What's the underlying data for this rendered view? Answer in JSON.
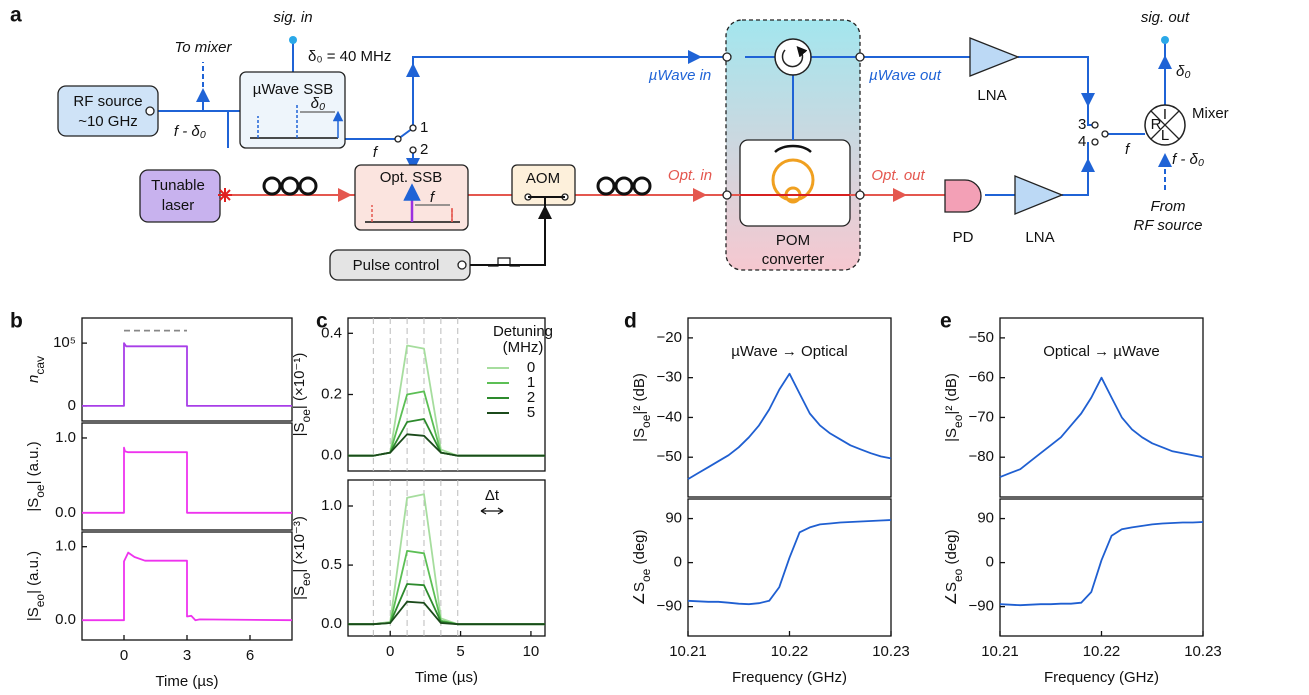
{
  "diagram": {
    "label": "a",
    "sig_in": "sig. in",
    "to_mixer": "To mixer",
    "delta_set": "δ₀ = 40 MHz",
    "rf_source_1": "RF source",
    "rf_source_2": "~10 GHz",
    "f_minus_d0_left": "f - δ₀",
    "uwave_ssb": "µWave SSB",
    "d0_ssb": "δ₀",
    "f_ssb": "f",
    "switch_1": "1",
    "switch_2": "2",
    "uwave_in": "µWave in",
    "uwave_out": "µWave out",
    "lna_top": "LNA",
    "sig_out": "sig. out",
    "d0_out": "δ₀",
    "switch_3": "3",
    "switch_4": "4",
    "f_mixer": "f",
    "mixer_r": "R",
    "mixer_i": "I",
    "mixer_l": "L",
    "mixer": "Mixer",
    "f_minus_d0_right": "f - δ₀",
    "from_1": "From",
    "from_2": "RF source",
    "laser_1": "Tunable",
    "laser_2": "laser",
    "opt_ssb": "Opt. SSB",
    "f_opt": "f",
    "aom": "AOM",
    "opt_in": "Opt. in",
    "opt_out": "Opt. out",
    "pom_1": "POM",
    "pom_2": "converter",
    "pd": "PD",
    "lna_bottom": "LNA",
    "pulse_control": "Pulse control"
  },
  "chart_data": [
    {
      "type": "line",
      "panel_label": "b",
      "xlim": [
        -2,
        8
      ],
      "ylim": [
        -24000,
        140000
      ],
      "yticks": [
        0,
        {
          "value": 100000,
          "label": "10⁵"
        }
      ],
      "ylabel": [
        "n",
        "cav"
      ],
      "series": [
        {
          "color": "#a83ee8",
          "x": [
            -2,
            0,
            0,
            0.1,
            3,
            3,
            8
          ],
          "values": [
            0,
            0,
            100000,
            95000,
            95000,
            0,
            0
          ]
        },
        {
          "color": "#888888",
          "dashed": true,
          "x": [
            0,
            3
          ],
          "values": [
            120000,
            120000
          ]
        }
      ]
    },
    {
      "type": "line",
      "xlim": [
        -2,
        8
      ],
      "ylim": [
        -0.23,
        1.2
      ],
      "yticks": [
        {
          "value": 0,
          "label": "0.0"
        },
        {
          "value": 1,
          "label": "1.0"
        }
      ],
      "ylabel": [
        "|S",
        "oe",
        "| (a.u.)"
      ],
      "x": [
        -2,
        0,
        0,
        0.05,
        0.2,
        3,
        3,
        8
      ],
      "series": [
        {
          "color": "#ee33ee",
          "values": [
            0,
            0,
            0.87,
            0.82,
            0.81,
            0.81,
            0,
            0
          ]
        }
      ]
    },
    {
      "type": "line",
      "xlim": [
        -2,
        8
      ],
      "ylim": [
        -0.27,
        1.2
      ],
      "yticks": [
        {
          "value": 0,
          "label": "0.0"
        },
        {
          "value": 1,
          "label": "1.0"
        }
      ],
      "ylabel": [
        "|S",
        "eo",
        "| (a.u.)"
      ],
      "xticks": [
        0,
        3,
        6
      ],
      "xlabel": "Time (µs)",
      "x": [
        -2,
        0,
        0,
        0.2,
        0.5,
        1,
        3,
        3,
        3.2,
        3.4,
        3.6,
        8
      ],
      "series": [
        {
          "color": "#ee33ee",
          "values": [
            0,
            0,
            0.8,
            0.92,
            0.86,
            0.81,
            0.81,
            0.05,
            0.06,
            0,
            0.01,
            0
          ]
        }
      ]
    },
    {
      "type": "line",
      "panel_label": "c",
      "vlines": true,
      "xlim": [
        -3,
        11
      ],
      "ylim": [
        -0.05,
        0.45
      ],
      "yticks": [
        {
          "value": 0,
          "label": "0.0"
        },
        0.2,
        0.4
      ],
      "ylabel": [
        "|S",
        "oe",
        "| (×10⁻¹)"
      ],
      "legend_title": [
        "Detuning",
        "(MHz)"
      ],
      "x": [
        -3,
        -1.2,
        0,
        1.2,
        2.4,
        3.6,
        4.8,
        11
      ],
      "series": [
        {
          "name": "0",
          "color": "#a6dd9e",
          "values": [
            0,
            0,
            0.01,
            0.36,
            0.35,
            0.02,
            0,
            0
          ]
        },
        {
          "name": "1",
          "color": "#5cbf55",
          "values": [
            0,
            0,
            0.01,
            0.2,
            0.21,
            0.01,
            0,
            0
          ]
        },
        {
          "name": "2",
          "color": "#2d8a2d",
          "values": [
            0,
            0,
            0.01,
            0.11,
            0.12,
            0.01,
            0,
            0
          ]
        },
        {
          "name": "5",
          "color": "#1b4a1b",
          "values": [
            0,
            0,
            0.01,
            0.07,
            0.065,
            0.01,
            0,
            0
          ]
        }
      ]
    },
    {
      "type": "line",
      "vlines": true,
      "xlim": [
        -3,
        11
      ],
      "ylim": [
        -0.1,
        1.22
      ],
      "yticks": [
        {
          "value": 0,
          "label": "0.0"
        },
        0.5,
        {
          "value": 1,
          "label": "1.0"
        }
      ],
      "ylabel": [
        "|S",
        "eo",
        "| (×10⁻³)"
      ],
      "xticks": [
        0,
        5,
        10
      ],
      "xlabel": "Time (µs)",
      "annotation": "Δt",
      "x": [
        -3,
        -1.2,
        0,
        1.2,
        2.4,
        3.6,
        4.8,
        11
      ],
      "series": [
        {
          "color": "#a6dd9e",
          "values": [
            0,
            0,
            0.02,
            1.07,
            1.1,
            0.05,
            0,
            0
          ]
        },
        {
          "color": "#5cbf55",
          "values": [
            0,
            0,
            0.01,
            0.62,
            0.6,
            0.03,
            0,
            0
          ]
        },
        {
          "color": "#2d8a2d",
          "values": [
            0,
            0,
            0.01,
            0.34,
            0.33,
            0.02,
            0,
            0
          ]
        },
        {
          "color": "#1b4a1b",
          "values": [
            0,
            0,
            0.01,
            0.19,
            0.18,
            0.01,
            0,
            0
          ]
        }
      ]
    },
    {
      "type": "line",
      "panel_label": "d",
      "title": "µWave → Optical",
      "xlim": [
        10.21,
        10.23
      ],
      "ylim": [
        -60,
        -15
      ],
      "yticks": [
        {
          "value": -20,
          "label": "−20"
        },
        {
          "value": -30,
          "label": "−30"
        },
        {
          "value": -40,
          "label": "−40"
        },
        {
          "value": -50,
          "label": "−50"
        }
      ],
      "ylabel": [
        "|S",
        "oe",
        "|² (dB)"
      ],
      "x": [
        10.21,
        10.211,
        10.212,
        10.213,
        10.214,
        10.215,
        10.216,
        10.217,
        10.218,
        10.219,
        10.22,
        10.221,
        10.222,
        10.223,
        10.224,
        10.225,
        10.226,
        10.227,
        10.228,
        10.229,
        10.23
      ],
      "series": [
        {
          "color": "#1f5fd1",
          "values": [
            -55.5,
            -54,
            -52.5,
            -51,
            -49.5,
            -47.5,
            -45,
            -42,
            -38,
            -33,
            -29,
            -34,
            -39,
            -42,
            -44,
            -45.5,
            -47,
            -48,
            -49,
            -49.8,
            -50.3
          ]
        }
      ]
    },
    {
      "type": "line",
      "xlim": [
        10.21,
        10.23
      ],
      "ylim": [
        -150,
        130
      ],
      "yticks": [
        90,
        0,
        {
          "value": -90,
          "label": "−90"
        }
      ],
      "ylabel": [
        "∠S",
        "oe",
        " (deg)"
      ],
      "xticks": [
        10.21,
        10.22,
        10.23
      ],
      "xlabel": "Frequency (GHz)",
      "x": [
        10.21,
        10.211,
        10.212,
        10.213,
        10.214,
        10.215,
        10.216,
        10.217,
        10.218,
        10.219,
        10.22,
        10.221,
        10.222,
        10.223,
        10.224,
        10.225,
        10.226,
        10.227,
        10.228,
        10.229,
        10.23
      ],
      "series": [
        {
          "color": "#1f5fd1",
          "values": [
            -78,
            -79,
            -80,
            -80,
            -82,
            -84,
            -85,
            -83,
            -78,
            -50,
            10,
            62,
            72,
            78,
            80,
            82,
            83,
            84,
            85,
            86,
            87
          ]
        }
      ]
    },
    {
      "type": "line",
      "panel_label": "e",
      "title": "Optical → µWave",
      "xlim": [
        10.21,
        10.23
      ],
      "ylim": [
        -90,
        -45
      ],
      "yticks": [
        {
          "value": -50,
          "label": "−50"
        },
        {
          "value": -60,
          "label": "−60"
        },
        {
          "value": -70,
          "label": "−70"
        },
        {
          "value": -80,
          "label": "−80"
        }
      ],
      "ylabel": [
        "|S",
        "eo",
        "|² (dB)"
      ],
      "x": [
        10.21,
        10.211,
        10.212,
        10.213,
        10.214,
        10.215,
        10.216,
        10.217,
        10.218,
        10.219,
        10.22,
        10.221,
        10.222,
        10.223,
        10.224,
        10.225,
        10.226,
        10.227,
        10.228,
        10.229,
        10.23
      ],
      "series": [
        {
          "color": "#1f5fd1",
          "values": [
            -85,
            -84,
            -83,
            -81,
            -79,
            -77,
            -75,
            -72,
            -69,
            -65,
            -60,
            -65,
            -70,
            -73,
            -75,
            -76.5,
            -77.5,
            -78.5,
            -79,
            -79.5,
            -80
          ]
        }
      ]
    },
    {
      "type": "line",
      "xlim": [
        10.21,
        10.23
      ],
      "ylim": [
        -150,
        130
      ],
      "yticks": [
        90,
        0,
        {
          "value": -90,
          "label": "−90"
        }
      ],
      "ylabel": [
        "∠S",
        "eo",
        " (deg)"
      ],
      "xticks": [
        10.21,
        10.22,
        10.23
      ],
      "xlabel": "Frequency (GHz)",
      "x": [
        10.21,
        10.211,
        10.212,
        10.213,
        10.214,
        10.215,
        10.216,
        10.217,
        10.218,
        10.219,
        10.22,
        10.221,
        10.222,
        10.223,
        10.224,
        10.225,
        10.226,
        10.227,
        10.228,
        10.229,
        10.23
      ],
      "series": [
        {
          "color": "#1f5fd1",
          "values": [
            -85,
            -86,
            -87,
            -86,
            -85,
            -85,
            -84,
            -84,
            -82,
            -60,
            5,
            55,
            68,
            72,
            75,
            78,
            80,
            81,
            82,
            82,
            83
          ]
        }
      ]
    }
  ]
}
